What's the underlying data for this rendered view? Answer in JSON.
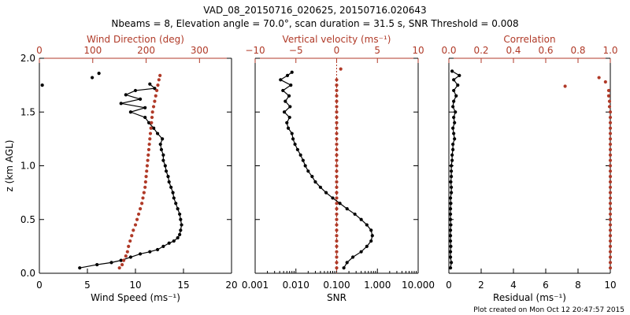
{
  "title_line1": "VAD_08_20150716_020625, 20150716.020643",
  "title_line2": "Nbeams = 8, Elevation angle = 70.0°, scan duration = 31.5 s, SNR Threshold = 0.008",
  "footer": "Plot created on Mon Oct 12 20:47:57 2015",
  "colors": {
    "primary": "#000000",
    "secondary": "#b03a28"
  },
  "chart_data": [
    {
      "type": "scatter",
      "ylabel": "z (km AGL)",
      "ylim": [
        0,
        2.0
      ],
      "yticks": [
        "0.0",
        "0.5",
        "1.0",
        "1.5",
        "2.0"
      ],
      "bottom_axis": {
        "label": "Wind Speed (ms⁻¹)",
        "range": [
          0,
          20
        ],
        "ticks": [
          "0",
          "5",
          "10",
          "15",
          "20"
        ]
      },
      "top_axis": {
        "label": "Wind Direction (deg)",
        "range": [
          0,
          360
        ],
        "ticks": [
          "0",
          "100",
          "200",
          "300"
        ]
      },
      "series": [
        {
          "axis": "bottom",
          "color": "black",
          "connected": true,
          "points": [
            [
              4.2,
              0.05
            ],
            [
              6.0,
              0.08
            ],
            [
              7.5,
              0.1
            ],
            [
              8.5,
              0.12
            ],
            [
              9.5,
              0.15
            ],
            [
              10.5,
              0.18
            ],
            [
              11.5,
              0.2
            ],
            [
              12.3,
              0.22
            ],
            [
              12.9,
              0.25
            ],
            [
              13.5,
              0.28
            ],
            [
              14.0,
              0.3
            ],
            [
              14.4,
              0.33
            ],
            [
              14.6,
              0.36
            ],
            [
              14.7,
              0.4
            ],
            [
              14.8,
              0.45
            ],
            [
              14.7,
              0.5
            ],
            [
              14.6,
              0.55
            ],
            [
              14.4,
              0.6
            ],
            [
              14.2,
              0.65
            ],
            [
              14.0,
              0.7
            ],
            [
              13.9,
              0.75
            ],
            [
              13.7,
              0.8
            ],
            [
              13.5,
              0.85
            ],
            [
              13.4,
              0.9
            ],
            [
              13.2,
              0.95
            ],
            [
              13.1,
              1.0
            ],
            [
              12.9,
              1.05
            ],
            [
              12.9,
              1.1
            ],
            [
              12.7,
              1.15
            ],
            [
              12.6,
              1.2
            ],
            [
              12.8,
              1.25
            ],
            [
              12.3,
              1.3
            ],
            [
              11.9,
              1.35
            ],
            [
              11.4,
              1.4
            ],
            [
              11.0,
              1.45
            ],
            [
              9.5,
              1.5
            ],
            [
              11.0,
              1.54
            ],
            [
              8.5,
              1.58
            ],
            [
              10.5,
              1.62
            ],
            [
              9.0,
              1.66
            ],
            [
              10.0,
              1.7
            ],
            [
              12.0,
              1.72
            ],
            [
              11.5,
              1.76
            ]
          ]
        },
        {
          "axis": "bottom",
          "color": "black",
          "connected": false,
          "points": [
            [
              0.3,
              1.75
            ],
            [
              5.5,
              1.82
            ],
            [
              6.2,
              1.86
            ]
          ]
        },
        {
          "axis": "top",
          "color": "red",
          "connected": false,
          "points": [
            [
              150,
              0.05
            ],
            [
              155,
              0.08
            ],
            [
              158,
              0.12
            ],
            [
              162,
              0.16
            ],
            [
              165,
              0.2
            ],
            [
              167,
              0.25
            ],
            [
              170,
              0.3
            ],
            [
              173,
              0.35
            ],
            [
              176,
              0.4
            ],
            [
              180,
              0.45
            ],
            [
              183,
              0.5
            ],
            [
              186,
              0.55
            ],
            [
              189,
              0.6
            ],
            [
              192,
              0.65
            ],
            [
              194,
              0.7
            ],
            [
              196,
              0.75
            ],
            [
              198,
              0.8
            ],
            [
              199,
              0.85
            ],
            [
              200,
              0.9
            ],
            [
              201,
              0.95
            ],
            [
              202,
              1.0
            ],
            [
              203,
              1.05
            ],
            [
              204,
              1.1
            ],
            [
              205,
              1.15
            ],
            [
              206,
              1.2
            ],
            [
              207,
              1.25
            ],
            [
              208,
              1.3
            ],
            [
              209,
              1.35
            ],
            [
              210,
              1.4
            ],
            [
              211,
              1.45
            ],
            [
              212,
              1.5
            ],
            [
              214,
              1.55
            ],
            [
              216,
              1.6
            ],
            [
              218,
              1.65
            ],
            [
              220,
              1.7
            ],
            [
              222,
              1.75
            ],
            [
              224,
              1.8
            ],
            [
              226,
              1.84
            ]
          ]
        }
      ]
    },
    {
      "type": "scatter",
      "ylim": [
        0,
        2.0
      ],
      "bottom_axis": {
        "label": "SNR",
        "range": [
          0.001,
          10
        ],
        "scale": "log",
        "ticks": [
          "0.001",
          "0.010",
          "0.100",
          "1.000",
          "10.000"
        ]
      },
      "top_axis": {
        "label": "Vertical velocity (ms⁻¹)",
        "range": [
          -10,
          10
        ],
        "ticks": [
          "−10",
          "−5",
          "0",
          "5",
          "10"
        ],
        "reference_line": 0
      },
      "series": [
        {
          "axis": "bottom",
          "color": "black",
          "connected": true,
          "points": [
            [
              0.15,
              0.05
            ],
            [
              0.18,
              0.1
            ],
            [
              0.25,
              0.15
            ],
            [
              0.4,
              0.2
            ],
            [
              0.55,
              0.25
            ],
            [
              0.7,
              0.3
            ],
            [
              0.75,
              0.35
            ],
            [
              0.7,
              0.4
            ],
            [
              0.55,
              0.45
            ],
            [
              0.4,
              0.5
            ],
            [
              0.28,
              0.55
            ],
            [
              0.18,
              0.6
            ],
            [
              0.12,
              0.65
            ],
            [
              0.08,
              0.7
            ],
            [
              0.055,
              0.75
            ],
            [
              0.04,
              0.8
            ],
            [
              0.03,
              0.85
            ],
            [
              0.025,
              0.9
            ],
            [
              0.02,
              0.95
            ],
            [
              0.017,
              1.0
            ],
            [
              0.015,
              1.05
            ],
            [
              0.013,
              1.1
            ],
            [
              0.011,
              1.15
            ],
            [
              0.0095,
              1.2
            ],
            [
              0.0085,
              1.25
            ],
            [
              0.008,
              1.3
            ],
            [
              0.0065,
              1.35
            ],
            [
              0.006,
              1.4
            ],
            [
              0.007,
              1.45
            ],
            [
              0.0052,
              1.5
            ],
            [
              0.0072,
              1.55
            ],
            [
              0.0055,
              1.6
            ],
            [
              0.0068,
              1.65
            ],
            [
              0.0048,
              1.7
            ],
            [
              0.0075,
              1.75
            ],
            [
              0.0042,
              1.8
            ],
            [
              0.0062,
              1.84
            ],
            [
              0.008,
              1.87
            ]
          ]
        },
        {
          "axis": "top",
          "color": "red",
          "connected": false,
          "points": [
            [
              0,
              0.05
            ],
            [
              0,
              0.1
            ],
            [
              0,
              0.15
            ],
            [
              0,
              0.2
            ],
            [
              0,
              0.25
            ],
            [
              0,
              0.3
            ],
            [
              0,
              0.35
            ],
            [
              0,
              0.4
            ],
            [
              0,
              0.45
            ],
            [
              0,
              0.5
            ],
            [
              0,
              0.55
            ],
            [
              0,
              0.6
            ],
            [
              0,
              0.65
            ],
            [
              0,
              0.7
            ],
            [
              0,
              0.75
            ],
            [
              0,
              0.8
            ],
            [
              0,
              0.85
            ],
            [
              0,
              0.9
            ],
            [
              0,
              0.95
            ],
            [
              0,
              1.0
            ],
            [
              0,
              1.05
            ],
            [
              0,
              1.1
            ],
            [
              0,
              1.15
            ],
            [
              0,
              1.2
            ],
            [
              0,
              1.25
            ],
            [
              0,
              1.3
            ],
            [
              0,
              1.35
            ],
            [
              0,
              1.4
            ],
            [
              0,
              1.45
            ],
            [
              0,
              1.5
            ],
            [
              0,
              1.55
            ],
            [
              0,
              1.6
            ],
            [
              0,
              1.65
            ],
            [
              0,
              1.7
            ],
            [
              0,
              1.75
            ],
            [
              0,
              1.8
            ],
            [
              0.5,
              1.9
            ]
          ]
        }
      ]
    },
    {
      "type": "scatter",
      "ylim": [
        0,
        2.0
      ],
      "bottom_axis": {
        "label": "Residual (ms⁻¹)",
        "range": [
          0,
          10
        ],
        "ticks": [
          "0",
          "2",
          "4",
          "6",
          "8",
          "10"
        ]
      },
      "top_axis": {
        "label": "Correlation",
        "range": [
          0,
          1.0
        ],
        "ticks": [
          "0.0",
          "0.2",
          "0.4",
          "0.6",
          "0.8",
          "1.0"
        ]
      },
      "series": [
        {
          "axis": "bottom",
          "color": "black",
          "connected": true,
          "points": [
            [
              0.1,
              0.05
            ],
            [
              0.15,
              0.1
            ],
            [
              0.1,
              0.15
            ],
            [
              0.1,
              0.2
            ],
            [
              0.12,
              0.25
            ],
            [
              0.1,
              0.3
            ],
            [
              0.1,
              0.35
            ],
            [
              0.1,
              0.4
            ],
            [
              0.12,
              0.45
            ],
            [
              0.1,
              0.5
            ],
            [
              0.1,
              0.55
            ],
            [
              0.1,
              0.6
            ],
            [
              0.12,
              0.65
            ],
            [
              0.1,
              0.7
            ],
            [
              0.15,
              0.75
            ],
            [
              0.15,
              0.8
            ],
            [
              0.12,
              0.85
            ],
            [
              0.15,
              0.9
            ],
            [
              0.15,
              0.95
            ],
            [
              0.15,
              1.0
            ],
            [
              0.2,
              1.05
            ],
            [
              0.2,
              1.1
            ],
            [
              0.25,
              1.15
            ],
            [
              0.25,
              1.2
            ],
            [
              0.35,
              1.25
            ],
            [
              0.3,
              1.3
            ],
            [
              0.25,
              1.35
            ],
            [
              0.35,
              1.4
            ],
            [
              0.3,
              1.45
            ],
            [
              0.4,
              1.5
            ],
            [
              0.25,
              1.55
            ],
            [
              0.3,
              1.6
            ],
            [
              0.45,
              1.65
            ],
            [
              0.3,
              1.7
            ],
            [
              0.55,
              1.75
            ],
            [
              0.3,
              1.8
            ],
            [
              0.65,
              1.84
            ],
            [
              0.2,
              1.88
            ]
          ]
        },
        {
          "axis": "top",
          "color": "red",
          "connected": false,
          "points": [
            [
              1.0,
              0.05
            ],
            [
              1.0,
              0.1
            ],
            [
              1.0,
              0.15
            ],
            [
              1.0,
              0.2
            ],
            [
              1.0,
              0.25
            ],
            [
              1.0,
              0.3
            ],
            [
              1.0,
              0.35
            ],
            [
              1.0,
              0.4
            ],
            [
              1.0,
              0.45
            ],
            [
              1.0,
              0.5
            ],
            [
              1.0,
              0.55
            ],
            [
              1.0,
              0.6
            ],
            [
              1.0,
              0.65
            ],
            [
              1.0,
              0.7
            ],
            [
              1.0,
              0.75
            ],
            [
              1.0,
              0.8
            ],
            [
              1.0,
              0.85
            ],
            [
              1.0,
              0.9
            ],
            [
              1.0,
              0.95
            ],
            [
              1.0,
              1.0
            ],
            [
              1.0,
              1.05
            ],
            [
              1.0,
              1.1
            ],
            [
              1.0,
              1.15
            ],
            [
              1.0,
              1.2
            ],
            [
              1.0,
              1.25
            ],
            [
              1.0,
              1.3
            ],
            [
              1.0,
              1.35
            ],
            [
              1.0,
              1.4
            ],
            [
              1.0,
              1.45
            ],
            [
              1.0,
              1.5
            ],
            [
              0.995,
              1.55
            ],
            [
              0.995,
              1.6
            ],
            [
              0.99,
              1.65
            ],
            [
              0.99,
              1.7
            ],
            [
              0.72,
              1.74
            ],
            [
              0.97,
              1.78
            ],
            [
              0.93,
              1.82
            ]
          ]
        }
      ]
    }
  ]
}
